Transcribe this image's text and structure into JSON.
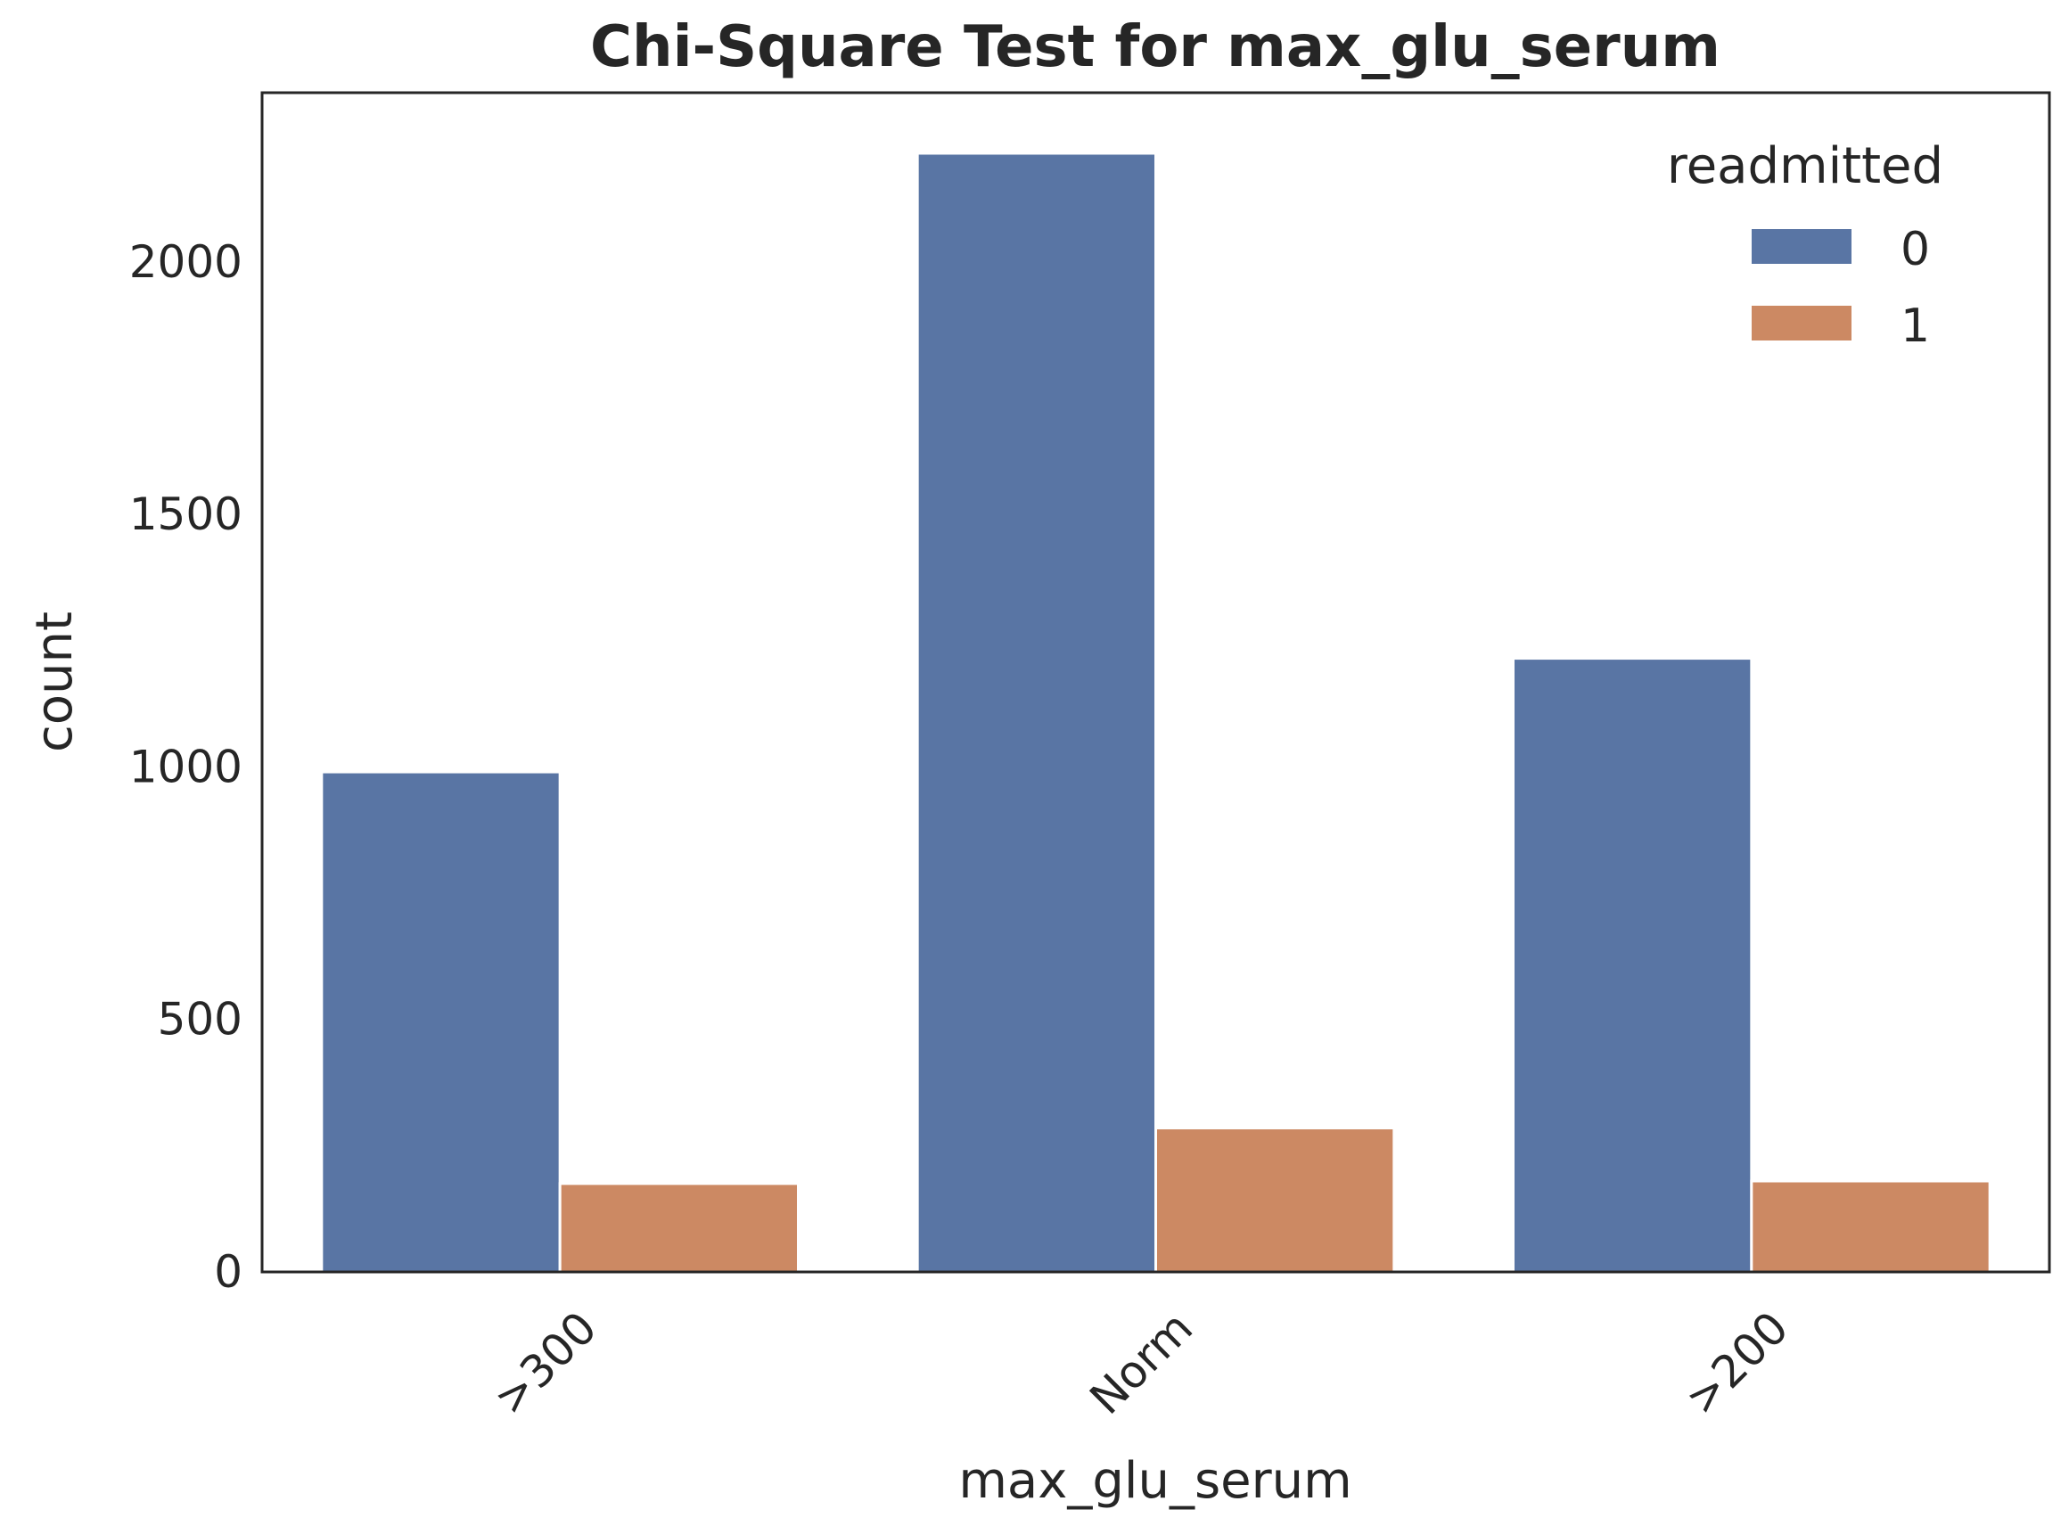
{
  "chart_data": {
    "type": "bar",
    "title": "Chi-Square Test for max_glu_serum",
    "xlabel": "max_glu_serum",
    "ylabel": "count",
    "categories": [
      ">300",
      "Norm",
      ">200"
    ],
    "series": [
      {
        "name": "0",
        "values": [
          990,
          2215,
          1215
        ],
        "color": "#5975a4"
      },
      {
        "name": "1",
        "values": [
          175,
          285,
          180
        ],
        "color": "#cc8963"
      }
    ],
    "ylim": [
      0,
      2335
    ],
    "yticks": [
      0,
      500,
      1000,
      1500,
      2000
    ],
    "legend": {
      "title": "readmitted",
      "placement": "top-right"
    },
    "grid": false,
    "x_tick_rotation": -45
  }
}
